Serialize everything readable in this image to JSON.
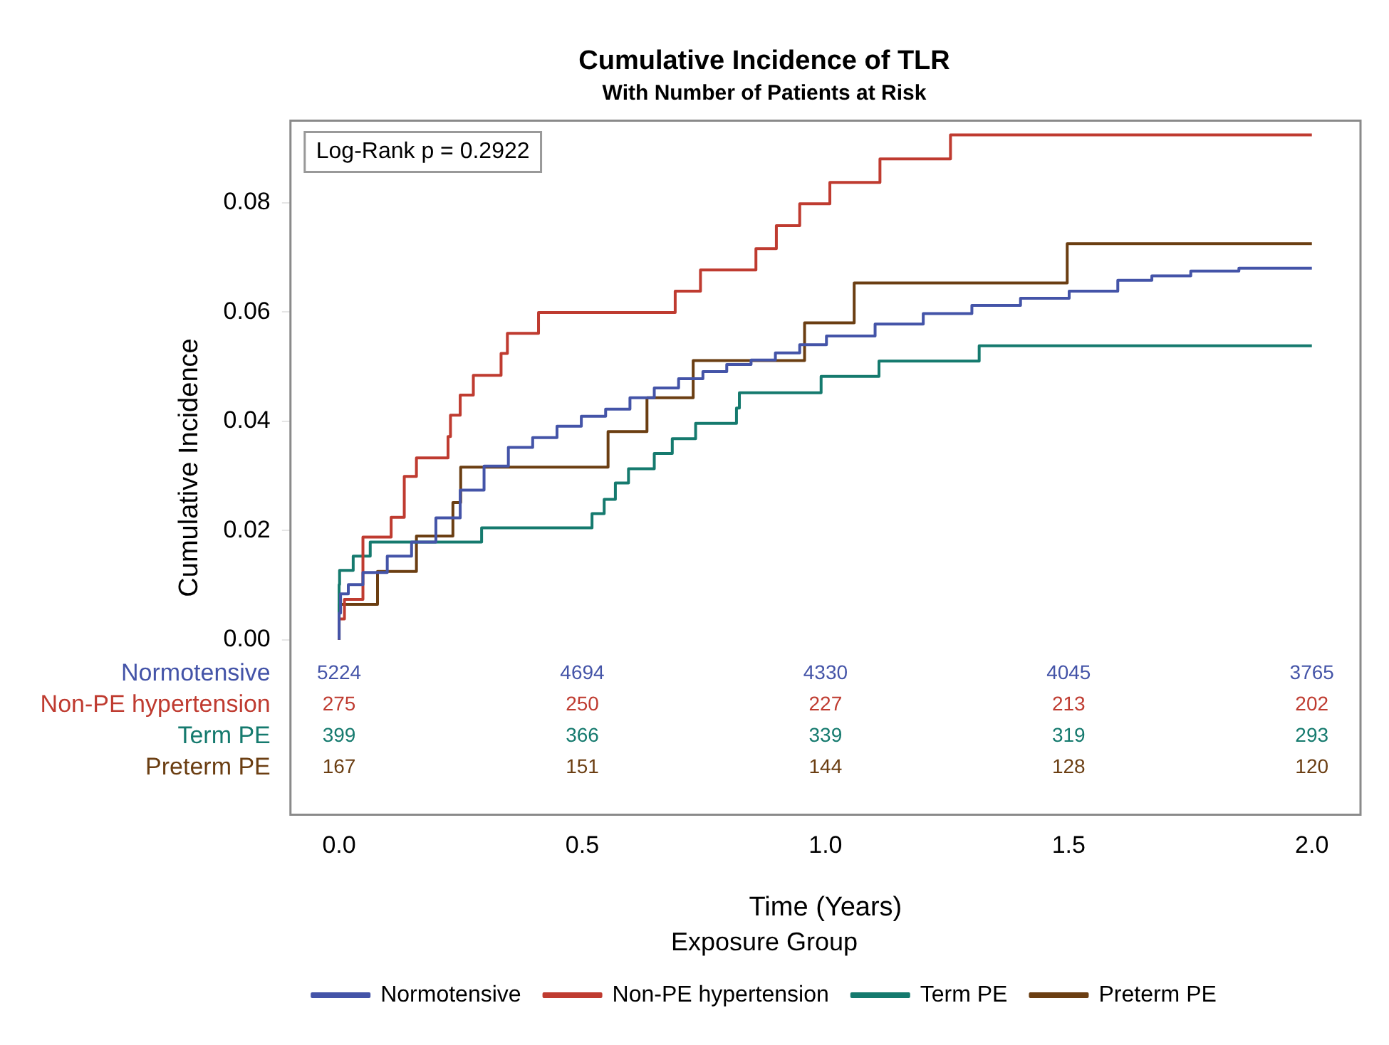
{
  "chart_data": {
    "type": "step",
    "title": "Cumulative Incidence of TLR",
    "subtitle": "With Number of Patients at Risk",
    "xlabel": "Time (Years)",
    "ylabel": "Cumulative Incidence",
    "legend_title": "Exposure Group",
    "legend": "bottom",
    "grid": false,
    "marker": "none",
    "line_style": "solid",
    "xlim": [
      -0.1,
      2.1
    ],
    "xticks": [
      {
        "value": 0,
        "label": "0.0"
      },
      {
        "value": 0.5,
        "label": "0.5"
      },
      {
        "value": 1,
        "label": "1.0"
      },
      {
        "value": 1.5,
        "label": "1.5"
      },
      {
        "value": 2,
        "label": "2.0"
      }
    ],
    "ylim": [
      -0.032,
      0.095
    ],
    "yticks": [
      {
        "value": 0,
        "label": "0.00"
      },
      {
        "value": 0.02,
        "label": "0.02"
      },
      {
        "value": 0.04,
        "label": "0.04"
      },
      {
        "value": 0.06,
        "label": "0.06"
      },
      {
        "value": 0.08,
        "label": "0.08"
      }
    ],
    "series": [
      {
        "name": "Normotensive",
        "color": "#4454a8",
        "x": [
          0,
          0.003,
          0.019,
          0.049,
          0.099,
          0.149,
          0.199,
          0.249,
          0.298,
          0.348,
          0.398,
          0.448,
          0.498,
          0.548,
          0.598,
          0.648,
          0.698,
          0.748,
          0.797,
          0.847,
          0.897,
          0.947,
          1.002,
          1.102,
          1.201,
          1.301,
          1.401,
          1.501,
          1.601,
          1.671,
          1.751,
          1.85,
          1.95,
          2.0
        ],
        "values": [
          0,
          0.0049,
          0.0084,
          0.0101,
          0.0123,
          0.0153,
          0.0179,
          0.0223,
          0.0274,
          0.0318,
          0.0352,
          0.037,
          0.0391,
          0.0409,
          0.0422,
          0.0443,
          0.0461,
          0.0478,
          0.0491,
          0.0504,
          0.0512,
          0.0525,
          0.054,
          0.0556,
          0.0578,
          0.0597,
          0.0612,
          0.0625,
          0.0638,
          0.0658,
          0.0666,
          0.0675,
          0.068,
          0.068
        ]
      },
      {
        "name": "Non-PE hypertension",
        "color": "#bf3b30",
        "x": [
          0,
          0.011,
          0.049,
          0.107,
          0.134,
          0.159,
          0.224,
          0.229,
          0.249,
          0.276,
          0.333,
          0.346,
          0.41,
          0.691,
          0.743,
          0.857,
          0.899,
          0.947,
          1.009,
          1.112,
          1.257,
          1.887,
          2.0
        ],
        "values": [
          0,
          0.0038,
          0.0074,
          0.0188,
          0.0224,
          0.0299,
          0.0333,
          0.0372,
          0.0411,
          0.0448,
          0.0484,
          0.0524,
          0.0561,
          0.0599,
          0.0638,
          0.0677,
          0.0716,
          0.0758,
          0.0798,
          0.0837,
          0.088,
          0.0924,
          0.0924
        ]
      },
      {
        "name": "Term PE",
        "color": "#157a6e",
        "x": [
          0,
          0.001,
          0.029,
          0.064,
          0.293,
          0.52,
          0.545,
          0.568,
          0.595,
          0.648,
          0.685,
          0.733,
          0.817,
          0.823,
          0.991,
          1.11,
          1.316,
          1.391,
          2.0
        ],
        "values": [
          0,
          0.0101,
          0.0127,
          0.0153,
          0.0179,
          0.0205,
          0.0231,
          0.0257,
          0.0287,
          0.0313,
          0.0341,
          0.0368,
          0.0396,
          0.0424,
          0.0452,
          0.0482,
          0.051,
          0.0538,
          0.0538
        ]
      },
      {
        "name": "Preterm PE",
        "color": "#6b3e12",
        "x": [
          0,
          0.079,
          0.159,
          0.234,
          0.25,
          0.553,
          0.633,
          0.728,
          0.957,
          1.059,
          1.497,
          1.553,
          2.0
        ],
        "values": [
          0,
          0.0065,
          0.0125,
          0.019,
          0.0251,
          0.0316,
          0.0381,
          0.0443,
          0.0511,
          0.058,
          0.0653,
          0.0725,
          0.0725
        ]
      }
    ],
    "annotations": [
      "Log-Rank p = 0.2922",
      "5224",
      "4694",
      "4330",
      "4045",
      "3765",
      "275",
      "250",
      "227",
      "213",
      "202",
      "399",
      "366",
      "339",
      "319",
      "293",
      "167",
      "151",
      "144",
      "128",
      "120"
    ]
  }
}
